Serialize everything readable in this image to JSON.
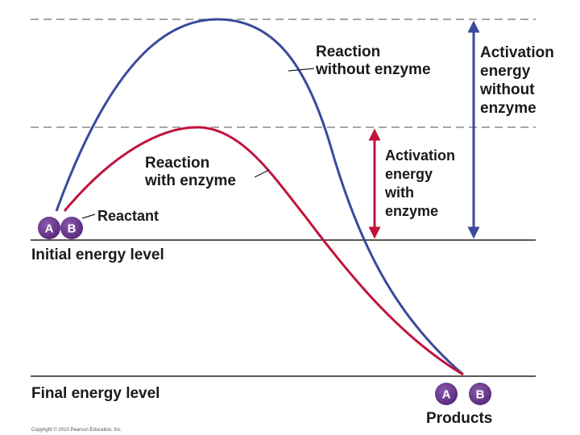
{
  "colors": {
    "uncatalyzed": "#3b4a9a",
    "catalyzed": "#c0143c",
    "molecule": "#6a3a8c",
    "level_line": "#222222",
    "dashed_line": "#888888"
  },
  "labels": {
    "reaction_without_enzyme": [
      "Reaction",
      "without enzyme"
    ],
    "reaction_with_enzyme": [
      "Reaction",
      "with enzyme"
    ],
    "activation_without_enzyme": [
      "Activation",
      "energy",
      "without",
      "enzyme"
    ],
    "activation_with_enzyme": [
      "Activation",
      "energy",
      "with",
      "enzyme"
    ],
    "reactant": "Reactant",
    "initial_energy_level": "Initial energy level",
    "final_energy_level": "Final energy level",
    "products": "Products",
    "copyright": "Copyright © 2010 Pearson Education, Inc."
  },
  "molecules": {
    "reactant": [
      "A",
      "B"
    ],
    "products": [
      "A",
      "B"
    ]
  }
}
